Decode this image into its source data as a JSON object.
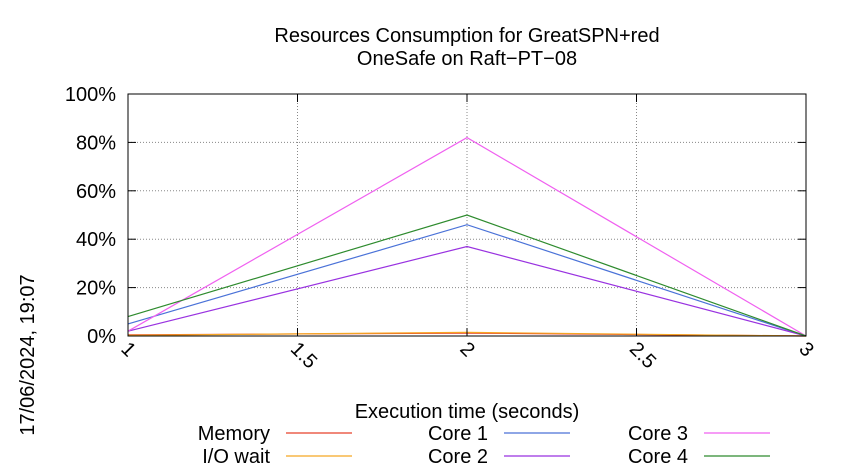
{
  "chart_data": {
    "type": "line",
    "title": "Resources Consumption for GreatSPN+red",
    "subtitle": "OneSafe on Raft−PT−08",
    "xlabel": "Execution time (seconds)",
    "ylabel": "",
    "timestamp": "17/06/2024, 19:07",
    "xlim": [
      1,
      3
    ],
    "ylim": [
      0,
      100
    ],
    "x_ticks": [
      1,
      1.5,
      2,
      2.5,
      3
    ],
    "x_tick_labels": [
      "1",
      "1.5",
      "2",
      "2.5",
      "3"
    ],
    "y_ticks": [
      0,
      20,
      40,
      60,
      80,
      100
    ],
    "y_tick_labels": [
      "0%",
      "20%",
      "40%",
      "60%",
      "80%",
      "100%"
    ],
    "grid": true,
    "legend_position": "bottom",
    "series": [
      {
        "name": "Memory",
        "color": "#e8402a",
        "x": [
          1,
          2,
          3
        ],
        "y": [
          0.5,
          1.2,
          0
        ]
      },
      {
        "name": "I/O wait",
        "color": "#f5a623",
        "x": [
          1,
          2,
          3
        ],
        "y": [
          0.3,
          1.5,
          0
        ]
      },
      {
        "name": "Core 1",
        "color": "#4a72d8",
        "x": [
          1,
          2,
          3
        ],
        "y": [
          5,
          46,
          0
        ]
      },
      {
        "name": "Core 2",
        "color": "#9932e0",
        "x": [
          1,
          2,
          3
        ],
        "y": [
          2,
          37,
          0
        ]
      },
      {
        "name": "Core 3",
        "color": "#f060f0",
        "x": [
          1,
          2,
          3
        ],
        "y": [
          2,
          82,
          0
        ]
      },
      {
        "name": "Core 4",
        "color": "#2e8b2e",
        "x": [
          1,
          2,
          3
        ],
        "y": [
          8,
          50,
          0
        ]
      }
    ]
  }
}
